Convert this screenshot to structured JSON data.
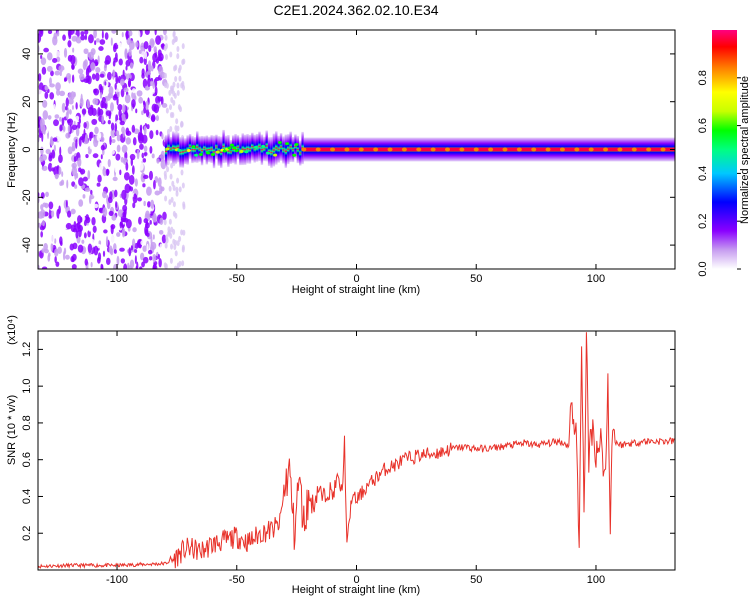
{
  "title": "C2E1.2024.362.02.10.E34",
  "chart_data": [
    {
      "type": "heatmap",
      "title": "C2E1.2024.362.02.10.E34",
      "xlabel": "Height of straight line (km)",
      "ylabel": "Frequency (Hz)",
      "xlim": [
        -133,
        133
      ],
      "ylim": [
        -50,
        50
      ],
      "x_ticks": [
        -100,
        -50,
        0,
        50,
        100
      ],
      "y_ticks": [
        40,
        20,
        0,
        -20,
        -40
      ],
      "colorbar": {
        "label": "Normalized spectral amplitude",
        "range": [
          0.0,
          1.0
        ],
        "ticks": [
          "0.0",
          "0.2",
          "0.4",
          "0.6",
          "0.8"
        ],
        "colormap": [
          "#ffffff",
          "#c69cf0",
          "#8a00ff",
          "#0000ff",
          "#00c8ff",
          "#00ff80",
          "#00ff00",
          "#c8ff00",
          "#ffff00",
          "#ff8000",
          "#ff0000",
          "#ff0080"
        ]
      },
      "regions": [
        {
          "x": [
            -133,
            -80
          ],
          "freq_spread": [
            -50,
            50
          ],
          "amplitude": [
            0.05,
            0.25
          ],
          "description": "broadband noise"
        },
        {
          "x": [
            -80,
            -22
          ],
          "freq_center": 0,
          "freq_halfwidth": 5,
          "amplitude": [
            0.3,
            0.6
          ]
        },
        {
          "x": [
            -22,
            133
          ],
          "freq_center": 0,
          "freq_halfwidth": 3,
          "amplitude": [
            0.85,
            1.0
          ]
        }
      ],
      "grid": false
    },
    {
      "type": "line",
      "xlabel": "Height of straight line (km)",
      "ylabel": "SNR (10 * v/v)",
      "y_multiplier": "(x10⁴)",
      "xlim": [
        -133,
        133
      ],
      "ylim": [
        0,
        1.3
      ],
      "x_ticks": [
        -100,
        -50,
        0,
        50,
        100
      ],
      "y_ticks": [
        "0.2",
        "0.4",
        "0.6",
        "0.8",
        "1.0",
        "1.2"
      ],
      "color": "#e8322a",
      "series": [
        {
          "x": [
            -133,
            -120,
            -110,
            -100,
            -90,
            -80,
            -76,
            -73,
            -70,
            -65,
            -60,
            -55,
            -50,
            -45,
            -40,
            -35,
            -32,
            -30,
            -28,
            -26,
            -24,
            -22,
            -20,
            -18,
            -16,
            -14,
            -12,
            -10,
            -8,
            -6,
            -5,
            -4,
            -2,
            0,
            4,
            8,
            12,
            16,
            20,
            25,
            30,
            35,
            40,
            45,
            50,
            55,
            60,
            65,
            70,
            75,
            80,
            85,
            88,
            90,
            92,
            93,
            94,
            95,
            96,
            97,
            98,
            100,
            102,
            104,
            105,
            106,
            107,
            108,
            110,
            115,
            120,
            125,
            133
          ],
          "y": [
            0.02,
            0.025,
            0.025,
            0.025,
            0.03,
            0.035,
            0.06,
            0.1,
            0.12,
            0.1,
            0.14,
            0.16,
            0.18,
            0.15,
            0.2,
            0.22,
            0.25,
            0.45,
            0.55,
            0.2,
            0.5,
            0.25,
            0.4,
            0.35,
            0.45,
            0.38,
            0.45,
            0.4,
            0.5,
            0.42,
            0.7,
            0.12,
            0.4,
            0.38,
            0.45,
            0.5,
            0.55,
            0.57,
            0.6,
            0.62,
            0.63,
            0.64,
            0.66,
            0.67,
            0.66,
            0.66,
            0.67,
            0.68,
            0.69,
            0.68,
            0.69,
            0.7,
            0.68,
            0.9,
            0.7,
            0.05,
            1.28,
            0.3,
            1.27,
            0.55,
            0.8,
            0.65,
            0.7,
            0.5,
            1.03,
            0.28,
            0.8,
            0.7,
            0.68,
            0.69,
            0.7,
            0.7,
            0.7
          ]
        }
      ],
      "grid": false
    }
  ]
}
